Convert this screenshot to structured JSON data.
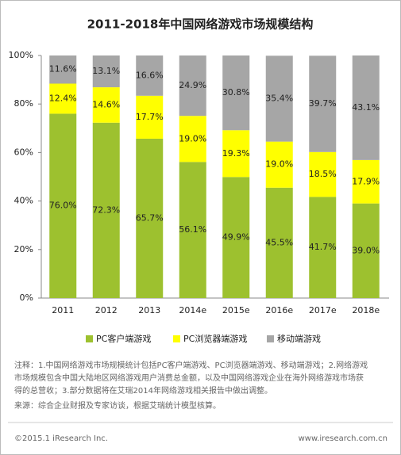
{
  "chart_data": {
    "type": "stacked_bar",
    "title": "2011-2018年中国网络游戏市场规模结构",
    "categories": [
      "2011",
      "2012",
      "2013",
      "2014e",
      "2015e",
      "2016e",
      "2017e",
      "2018e"
    ],
    "series": [
      {
        "name": "PC客户端游戏",
        "color": "#9dc12f",
        "values": [
          76.0,
          72.3,
          65.7,
          56.1,
          49.9,
          45.5,
          41.7,
          39.0
        ],
        "value_labels": [
          "76.0%",
          "72.3%",
          "65.7%",
          "56.1%",
          "49.9%",
          "45.5%",
          "41.7%",
          "39.0%"
        ]
      },
      {
        "name": "PC浏览器端游戏",
        "color": "#ffff00",
        "values": [
          12.4,
          14.6,
          17.7,
          19.0,
          19.3,
          19.0,
          18.5,
          17.9
        ],
        "value_labels": [
          "12.4%",
          "14.6%",
          "17.7%",
          "19.0%",
          "19.3%",
          "19.0%",
          "18.5%",
          "17.9%"
        ]
      },
      {
        "name": "移动端游戏",
        "color": "#a6a6a6",
        "values": [
          11.6,
          13.1,
          16.6,
          24.9,
          30.8,
          35.4,
          39.7,
          43.1
        ],
        "value_labels": [
          "11.6%",
          "13.1%",
          "16.6%",
          "24.9%",
          "30.8%",
          "35.4%",
          "39.7%",
          "43.1%"
        ]
      }
    ],
    "ylim": [
      0,
      100
    ],
    "yticks": [
      {
        "value": 0,
        "label": "0%"
      },
      {
        "value": 20,
        "label": "20%"
      },
      {
        "value": 40,
        "label": "40%"
      },
      {
        "value": 60,
        "label": "60%"
      },
      {
        "value": 80,
        "label": "80%"
      },
      {
        "value": 100,
        "label": "100%"
      }
    ],
    "notes": [
      "注释：1.中国网络游戏市场规模统计包括PC客户端游戏、PC浏览器端游戏、移动端游戏；2.网络游戏",
      "市场规模包含中国大陆地区网络游戏用户消费总金额，以及中国网络游戏企业在海外网络游戏市场获",
      "得的总营收；3.部分数据将在艾瑞2014年网络游戏相关报告中做出调整。"
    ],
    "source": "来源：综合企业财报及专家访谈，根据艾瑞统计模型核算。",
    "copyright": "©2015.1 iResearch Inc.",
    "website": "www.iresearch.com.cn"
  }
}
